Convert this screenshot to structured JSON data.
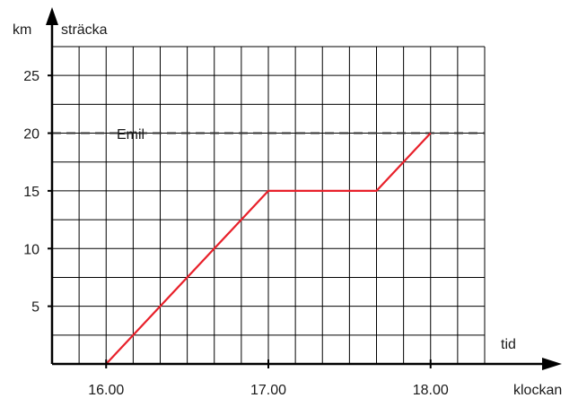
{
  "chart_data": {
    "type": "line",
    "y_unit_label": "km",
    "y_axis_label": "sträcka",
    "x_axis_label": "tid",
    "x_unit_label": "klockan",
    "x_ticks": [
      "16.00",
      "17.00",
      "18.00"
    ],
    "y_ticks": [
      "5",
      "10",
      "15",
      "20",
      "25"
    ],
    "x_range": [
      "15.40",
      "18.20"
    ],
    "y_range": [
      0,
      27.5
    ],
    "grid": true,
    "reference_line": {
      "name": "Emil",
      "y": 20,
      "style": "dashed"
    },
    "series": [
      {
        "color": "#e8202a",
        "points": [
          {
            "x": "16.00",
            "y": 0
          },
          {
            "x": "17.00",
            "y": 15
          },
          {
            "x": "17.40",
            "y": 15
          },
          {
            "x": "18.00",
            "y": 20
          }
        ]
      }
    ]
  },
  "colors": {
    "series": "#e8202a",
    "grid": "#000000",
    "axis": "#000000",
    "reference": "#333333"
  }
}
